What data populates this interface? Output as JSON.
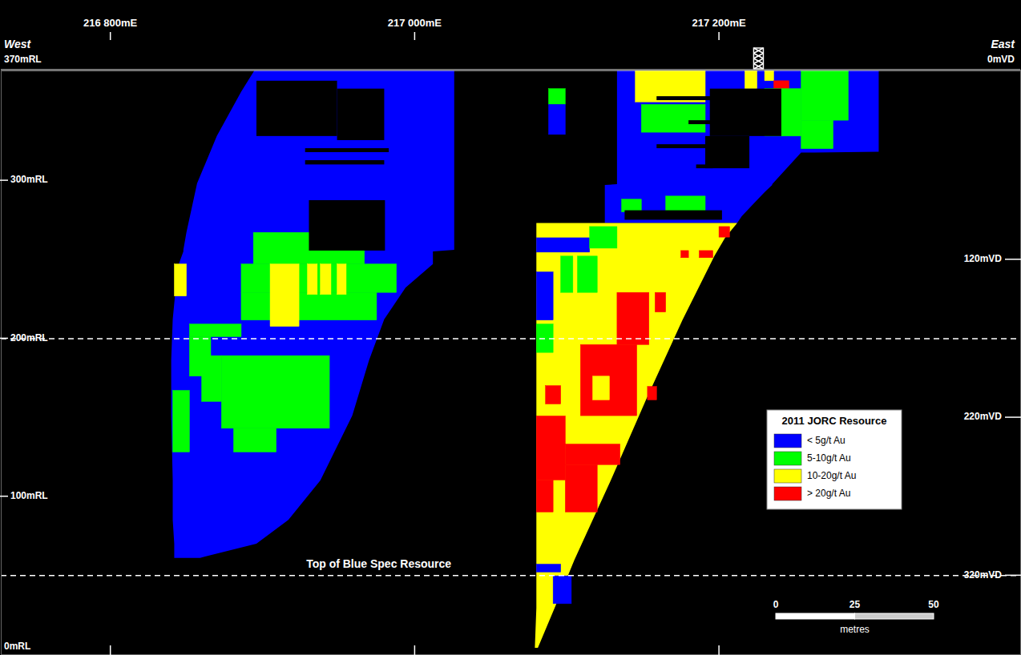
{
  "chart_data": {
    "type": "section",
    "x_end_labels": [
      "West",
      "East"
    ],
    "xlim": [
      216728,
      217398
    ],
    "xticks": [
      {
        "value": 216800,
        "label": "216 800mE"
      },
      {
        "value": 217000,
        "label": "217 000mE"
      },
      {
        "value": 217200,
        "label": "217 200mE"
      }
    ],
    "ylim": [
      0,
      370
    ],
    "yticks": [
      {
        "value": 370,
        "label": "370mRL"
      },
      {
        "value": 300,
        "label": "300mRL"
      },
      {
        "value": 200,
        "label": "200mRL"
      },
      {
        "value": 100,
        "label": "100mRL"
      },
      {
        "value": 0,
        "label": "0mRL"
      }
    ],
    "y2lim": [
      370,
      0
    ],
    "y2ticks": [
      {
        "value": 0,
        "label": "0mVD"
      },
      {
        "value": 120,
        "label": "120mVD"
      },
      {
        "value": 220,
        "label": "220mVD"
      },
      {
        "value": 320,
        "label": "320mVD"
      }
    ],
    "legend": "right",
    "legend_title": "2011 JORC Resource",
    "series": [
      {
        "name": "< 5g/t Au",
        "color": "#0000ff"
      },
      {
        "name": "5-10g/t Au",
        "color": "#00ff00"
      },
      {
        "name": "10-20g/t Au",
        "color": "#ffff00"
      },
      {
        "name": "> 20g/t Au",
        "color": "#ff0000"
      }
    ],
    "outlines": [
      {
        "base": 0,
        "points": [
          [
            370,
            216895,
            217026
          ],
          [
            356,
            216886,
            217026
          ],
          [
            328,
            216870,
            217026
          ],
          [
            298,
            216857,
            217026
          ],
          [
            267,
            216850,
            217026
          ],
          [
            256,
            216848,
            217026
          ],
          [
            255,
            216848,
            217012
          ],
          [
            247,
            216845,
            217012
          ],
          [
            232,
            216843,
            216994
          ],
          [
            212,
            216841,
            216980
          ],
          [
            186,
            216840,
            216970
          ],
          [
            151,
            216840,
            216959
          ],
          [
            110,
            216841,
            216938
          ],
          [
            85,
            216841,
            216917
          ],
          [
            70,
            216842,
            216896
          ],
          [
            61,
            216842,
            216859
          ]
        ]
      },
      {
        "base": 0,
        "points": [
          [
            370,
            217133,
            217305
          ],
          [
            318,
            217133,
            217305
          ],
          [
            317.5,
            217133,
            217254
          ],
          [
            297.5,
            217133,
            217235
          ],
          [
            297,
            217125,
            217235
          ],
          [
            292.5,
            217125,
            217230
          ],
          [
            277.3,
            217125,
            217215
          ],
          [
            273,
            217125,
            217212
          ]
        ]
      },
      {
        "base": 2,
        "points": [
          [
            273,
            217080,
            217212
          ],
          [
            263.6,
            217080,
            217204
          ],
          [
            252,
            217080,
            217197
          ],
          [
            211.5,
            217080,
            217176
          ],
          [
            160.9,
            217080,
            217152
          ],
          [
            110.3,
            217080,
            217129
          ],
          [
            59.7,
            217080,
            217105
          ],
          [
            29.3,
            217080,
            217092
          ],
          [
            4,
            217079,
            217081
          ]
        ]
      }
    ],
    "blocks": [
      [
        216894,
        216967,
        247,
        267,
        1
      ],
      [
        216886,
        216988,
        229,
        247,
        1
      ],
      [
        216886,
        216975,
        211.5,
        229,
        1
      ],
      [
        216852,
        216886,
        201,
        209,
        1
      ],
      [
        216852,
        216866,
        176,
        201,
        1
      ],
      [
        216873,
        216944,
        143,
        189,
        1
      ],
      [
        216860,
        216873,
        160,
        189,
        1
      ],
      [
        216881,
        216909,
        128,
        143,
        1
      ],
      [
        216841,
        216852,
        128,
        167,
        1
      ],
      [
        216842,
        216850,
        226.7,
        247,
        2
      ],
      [
        216905,
        216924,
        207.5,
        247,
        2
      ],
      [
        216929.5,
        216936,
        227.7,
        247,
        2
      ],
      [
        216938,
        216945,
        227.7,
        247,
        2
      ],
      [
        216949,
        216955,
        227.7,
        247,
        2
      ],
      [
        217145,
        217191,
        349.6,
        370,
        2
      ],
      [
        217149,
        217191,
        330.4,
        348,
        1
      ],
      [
        217217,
        217225,
        358,
        370,
        2
      ],
      [
        217230,
        217236,
        363,
        370,
        2
      ],
      [
        217236,
        217246,
        349,
        363,
        3
      ],
      [
        217230,
        217254,
        328,
        358,
        1
      ],
      [
        217254,
        217285,
        338,
        370,
        1
      ],
      [
        217254,
        217275,
        320,
        338,
        1
      ],
      [
        217165,
        217191,
        280,
        290,
        1
      ],
      [
        217136,
        217149,
        280,
        288,
        1
      ],
      [
        217088,
        217099,
        348,
        358,
        1
      ],
      [
        217088,
        217099,
        329,
        348,
        0
      ],
      [
        217080,
        217115,
        254.5,
        263.6,
        0
      ],
      [
        217115,
        217133,
        257,
        270.7,
        1
      ],
      [
        217080,
        217091,
        211.5,
        242,
        0
      ],
      [
        217096,
        217104,
        229,
        252,
        1
      ],
      [
        217107,
        217120,
        229,
        252,
        1
      ],
      [
        217080,
        217091,
        191,
        209,
        1
      ],
      [
        217133,
        217154,
        196,
        229,
        3
      ],
      [
        217109,
        217146,
        151,
        196,
        3
      ],
      [
        217158,
        217165,
        216.6,
        229,
        3
      ],
      [
        217153,
        217159,
        161,
        169.5,
        3
      ],
      [
        217086,
        217096,
        158.4,
        170,
        3
      ],
      [
        217080,
        217099,
        110.3,
        150.8,
        3
      ],
      [
        217099,
        217135,
        120,
        133,
        3
      ],
      [
        217099,
        217120,
        90,
        120,
        3
      ],
      [
        217080,
        217091,
        90,
        110.3,
        3
      ],
      [
        217117,
        217128,
        161,
        176,
        2
      ],
      [
        217080,
        217096,
        52,
        57,
        0
      ],
      [
        217091,
        217103,
        32,
        49.6,
        0
      ],
      [
        217200,
        217207,
        264,
        270.7,
        3
      ],
      [
        217175,
        217180,
        251,
        255.5,
        3
      ],
      [
        217187,
        217196,
        251,
        255.5,
        3
      ]
    ],
    "voids": [
      [
        216896,
        216949,
        328,
        363
      ],
      [
        216949,
        216980,
        325.4,
        358
      ],
      [
        216928,
        216983,
        317.8,
        320.3
      ],
      [
        216928,
        216980,
        310,
        312.7
      ],
      [
        216930.5,
        216980.5,
        255.5,
        287.4
      ],
      [
        217194,
        217241,
        328,
        358
      ],
      [
        217191,
        217220,
        307.6,
        328
      ],
      [
        217159,
        217196,
        350.7,
        353.2
      ],
      [
        217180,
        217196,
        335.5,
        338
      ],
      [
        217159,
        217196,
        320.3,
        322.8
      ],
      [
        217185,
        217196,
        307.6,
        310
      ],
      [
        217138,
        217202,
        275,
        281
      ]
    ],
    "reference_lines": [
      {
        "y": 200
      },
      {
        "y": 50,
        "label": "Top of Blue Spec Resource"
      }
    ],
    "shaft_x": 217226,
    "scale_bar": {
      "ticks": [
        0,
        25,
        50
      ],
      "label": "metres"
    }
  }
}
